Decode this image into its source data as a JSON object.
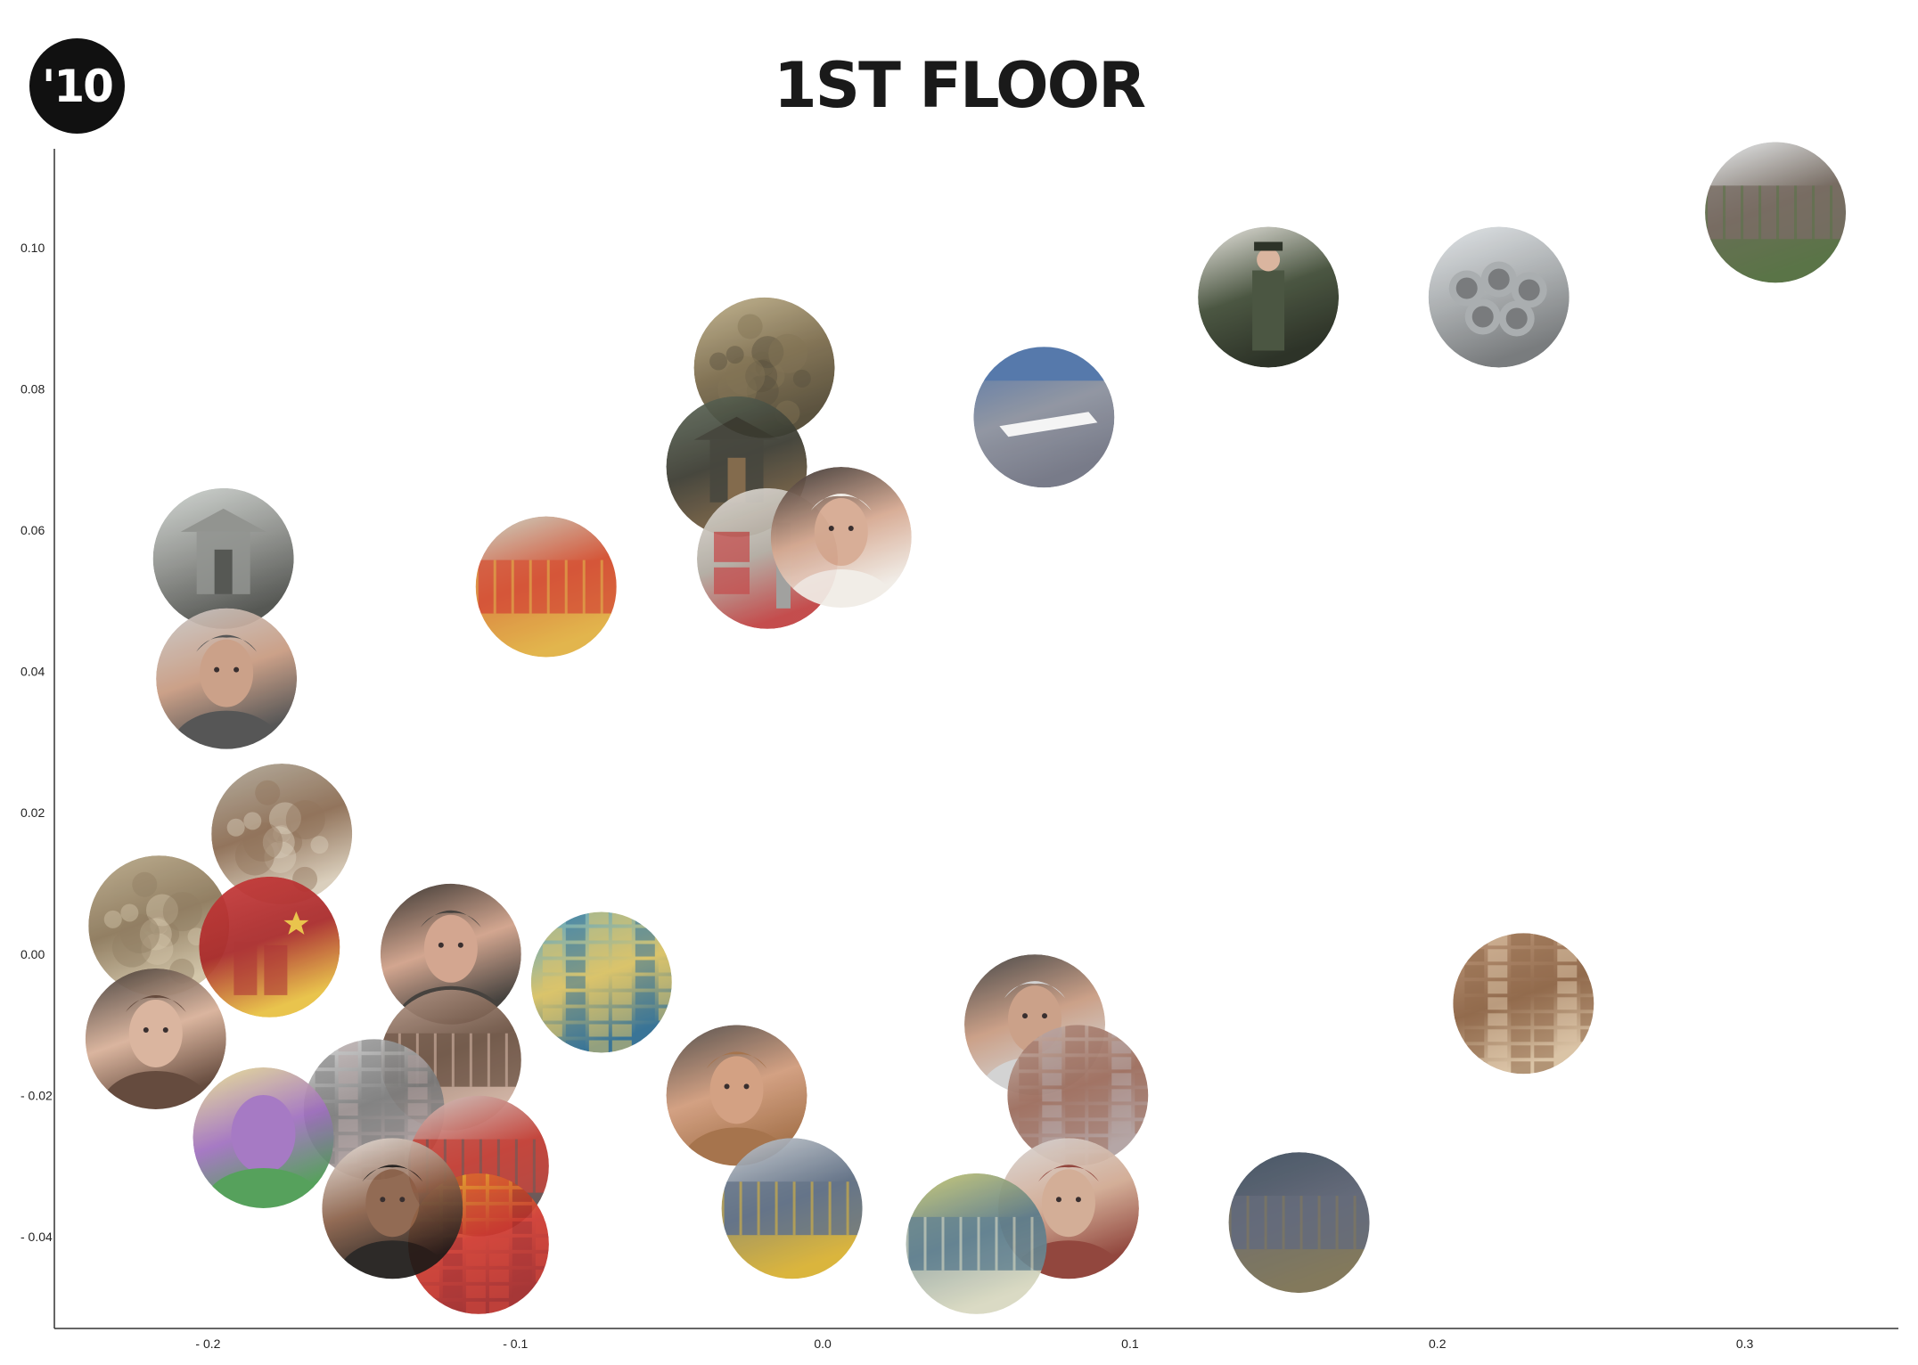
{
  "logo": {
    "text": "'10"
  },
  "page_title": "1ST FLOOR",
  "chart_data": {
    "type": "scatter",
    "xlim": [
      -0.25,
      0.35
    ],
    "ylim": [
      -0.053,
      0.114
    ],
    "x_ticks": [
      {
        "value": -0.2,
        "label": "- 0.2"
      },
      {
        "value": -0.1,
        "label": "- 0.1"
      },
      {
        "value": 0.0,
        "label": "0.0"
      },
      {
        "value": 0.1,
        "label": "0.1"
      },
      {
        "value": 0.2,
        "label": "0.2"
      },
      {
        "value": 0.3,
        "label": "0.3"
      }
    ],
    "y_ticks": [
      {
        "value": 0.1,
        "label": "0.10"
      },
      {
        "value": 0.08,
        "label": "0.08"
      },
      {
        "value": 0.06,
        "label": "0.06"
      },
      {
        "value": 0.04,
        "label": "0.04"
      },
      {
        "value": 0.02,
        "label": "0.02"
      },
      {
        "value": 0.0,
        "label": "0.00"
      },
      {
        "value": -0.02,
        "label": "- 0.02"
      },
      {
        "value": -0.04,
        "label": "- 0.04"
      }
    ],
    "grid": false,
    "points": [
      {
        "x": 0.31,
        "y": 0.105,
        "kind": "fence",
        "colors": [
          "#e8ecee",
          "#6e6258",
          "#4e6a3a"
        ]
      },
      {
        "x": 0.22,
        "y": 0.093,
        "kind": "pipes",
        "colors": [
          "#dfe3e6",
          "#a4a8aa",
          "#6f7274"
        ]
      },
      {
        "x": 0.145,
        "y": 0.093,
        "kind": "soldier",
        "colors": [
          "#e9e6e0",
          "#3e4a34",
          "#1e2418"
        ]
      },
      {
        "x": 0.072,
        "y": 0.076,
        "kind": "runway",
        "colors": [
          "#4a6fa5",
          "#8a8f9c",
          "#6e7180"
        ]
      },
      {
        "x": -0.019,
        "y": 0.083,
        "kind": "painting",
        "colors": [
          "#bfb08a",
          "#7a6a4a",
          "#4e4530"
        ]
      },
      {
        "x": -0.028,
        "y": 0.069,
        "kind": "temple",
        "colors": [
          "#5e6a5a",
          "#3a3a30",
          "#7a6040"
        ]
      },
      {
        "x": -0.018,
        "y": 0.056,
        "kind": "wall-text",
        "colors": [
          "#e0dcd6",
          "#b0aaa0",
          "#c04040"
        ]
      },
      {
        "x": 0.006,
        "y": 0.059,
        "kind": "face",
        "colors": [
          "#2e2a28",
          "#d6a890",
          "#f0ece6"
        ]
      },
      {
        "x": -0.09,
        "y": 0.052,
        "kind": "storefront",
        "colors": [
          "#c8d0c0",
          "#d24a2a",
          "#e0b040"
        ]
      },
      {
        "x": -0.195,
        "y": 0.056,
        "kind": "kiosk",
        "colors": [
          "#cfd4d0",
          "#8a8c88",
          "#4a4c48"
        ]
      },
      {
        "x": -0.194,
        "y": 0.039,
        "kind": "face",
        "colors": [
          "#c8c8c8",
          "#c89a80",
          "#4a4a4a"
        ]
      },
      {
        "x": -0.176,
        "y": 0.017,
        "kind": "rubble",
        "colors": [
          "#b0a898",
          "#8a6a50",
          "#d8ccb8"
        ]
      },
      {
        "x": -0.216,
        "y": 0.004,
        "kind": "painting",
        "colors": [
          "#b8a888",
          "#8a7658",
          "#d0c2a4"
        ]
      },
      {
        "x": -0.18,
        "y": 0.001,
        "kind": "flag",
        "colors": [
          "#c83a3a",
          "#a82828",
          "#e8c040"
        ]
      },
      {
        "x": -0.121,
        "y": 0.0,
        "kind": "face",
        "colors": [
          "#2a2622",
          "#d0a088",
          "#383430"
        ]
      },
      {
        "x": -0.072,
        "y": -0.004,
        "kind": "mural",
        "colors": [
          "#4aa0c8",
          "#d8c060",
          "#2a6a90"
        ]
      },
      {
        "x": -0.217,
        "y": -0.012,
        "kind": "face",
        "colors": [
          "#3a3430",
          "#d8b098",
          "#5a3e30"
        ]
      },
      {
        "x": -0.121,
        "y": -0.015,
        "kind": "tractor",
        "colors": [
          "#b89a8a",
          "#6a5040",
          "#d0b0a0"
        ]
      },
      {
        "x": -0.146,
        "y": -0.022,
        "kind": "posters",
        "colors": [
          "#d8d8d8",
          "#7a7a7a",
          "#b0a0a0"
        ]
      },
      {
        "x": -0.182,
        "y": -0.026,
        "kind": "portrait",
        "colors": [
          "#e8e090",
          "#a070c0",
          "#4a9a50"
        ]
      },
      {
        "x": -0.112,
        "y": -0.03,
        "kind": "shop",
        "colors": [
          "#d0ccc8",
          "#c03a30",
          "#5a5050"
        ]
      },
      {
        "x": -0.112,
        "y": -0.041,
        "kind": "pattern",
        "colors": [
          "#e8c030",
          "#d03a30",
          "#a02828"
        ]
      },
      {
        "x": -0.14,
        "y": -0.036,
        "kind": "face",
        "colors": [
          "#f0ece8",
          "#8a6048",
          "#1e1a18"
        ]
      },
      {
        "x": -0.028,
        "y": -0.02,
        "kind": "face",
        "colors": [
          "#4a4542",
          "#d09a7a",
          "#a06a40"
        ]
      },
      {
        "x": -0.01,
        "y": -0.036,
        "kind": "roadblock",
        "colors": [
          "#c8ccd0",
          "#5a6a80",
          "#d8b030"
        ]
      },
      {
        "x": 0.069,
        "y": -0.01,
        "kind": "face",
        "colors": [
          "#3a3a3a",
          "#c89a80",
          "#d0d0d0"
        ]
      },
      {
        "x": 0.083,
        "y": -0.02,
        "kind": "brick",
        "colors": [
          "#c8b8b0",
          "#9a6a5a",
          "#b0a0a0"
        ]
      },
      {
        "x": 0.08,
        "y": -0.036,
        "kind": "face",
        "colors": [
          "#d8d8d8",
          "#d0a890",
          "#8a3a30"
        ]
      },
      {
        "x": 0.05,
        "y": -0.041,
        "kind": "wall",
        "colors": [
          "#c8c870",
          "#5a7a8a",
          "#d8d8c0"
        ]
      },
      {
        "x": 0.155,
        "y": -0.038,
        "kind": "sign",
        "colors": [
          "#3a4a5a",
          "#5a6070",
          "#7a7050"
        ]
      },
      {
        "x": 0.228,
        "y": -0.007,
        "kind": "brick",
        "colors": [
          "#b89070",
          "#8a6040",
          "#d8c0a0"
        ]
      }
    ]
  }
}
